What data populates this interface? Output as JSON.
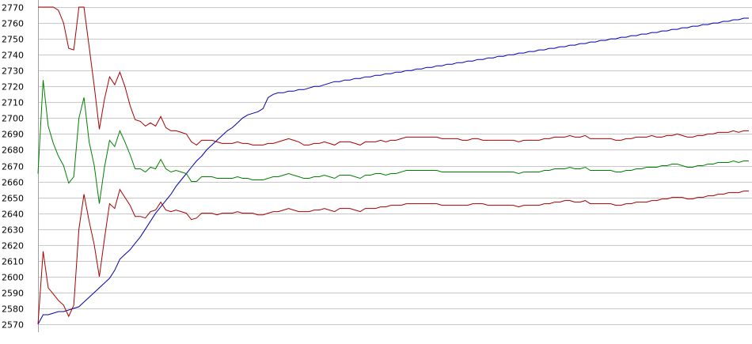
{
  "chart_data": {
    "type": "line",
    "title": "",
    "xlabel": "",
    "ylabel": "",
    "ylim": [
      2570,
      2770
    ],
    "yticks": [
      2570,
      2580,
      2590,
      2600,
      2610,
      2620,
      2630,
      2640,
      2650,
      2660,
      2670,
      2680,
      2690,
      2700,
      2710,
      2720,
      2730,
      2740,
      2750,
      2760,
      2770
    ],
    "grid": true,
    "legend": "none",
    "x": [
      0,
      1,
      2,
      3,
      4,
      5,
      6,
      7,
      8,
      9,
      10,
      11,
      12,
      13,
      14,
      15,
      16,
      17,
      18,
      19,
      20,
      21,
      22,
      23,
      24,
      25,
      26,
      27,
      28,
      29,
      30,
      31,
      32,
      33,
      34,
      35,
      36,
      37,
      38,
      39,
      40,
      41,
      42,
      43,
      44,
      45,
      46,
      47,
      48,
      49,
      50,
      51,
      52,
      53,
      54,
      55,
      56,
      57,
      58,
      59,
      60,
      61,
      62,
      63,
      64,
      65,
      66,
      67,
      68,
      69,
      70,
      71,
      72,
      73,
      74,
      75,
      76,
      77,
      78,
      79,
      80,
      81,
      82,
      83,
      84,
      85,
      86,
      87,
      88,
      89,
      90,
      91,
      92,
      93,
      94,
      95,
      96,
      97,
      98,
      99,
      100,
      101,
      102,
      103,
      104,
      105,
      106,
      107,
      108,
      109,
      110,
      111,
      112,
      113,
      114,
      115,
      116,
      117,
      118,
      119,
      120,
      121,
      122,
      123,
      124,
      125,
      126,
      127,
      128,
      129,
      130,
      131,
      132,
      133,
      134,
      135,
      136,
      137,
      138,
      139
    ],
    "series": [
      {
        "color": "#0000aa",
        "values": [
          2570,
          2576,
          2576,
          2577,
          2578,
          2578,
          2579,
          2580,
          2581,
          2584,
          2587,
          2590,
          2593,
          2596,
          2599,
          2604,
          2611,
          2614,
          2617,
          2621,
          2625,
          2630,
          2635,
          2640,
          2644,
          2648,
          2652,
          2657,
          2661,
          2665,
          2669,
          2673,
          2676,
          2680,
          2683,
          2686,
          2689,
          2692,
          2694,
          2697,
          2700,
          2702,
          2703,
          2704,
          2706,
          2713,
          2715,
          2716,
          2716,
          2717,
          2717,
          2718,
          2718,
          2719,
          2720,
          2720,
          2721,
          2722,
          2723,
          2723,
          2724,
          2724,
          2725,
          2725,
          2726,
          2726,
          2727,
          2727,
          2728,
          2728,
          2729,
          2729,
          2730,
          2730,
          2731,
          2731,
          2732,
          2732,
          2733,
          2733,
          2734,
          2734,
          2735,
          2735,
          2736,
          2736,
          2737,
          2737,
          2738,
          2738,
          2739,
          2739,
          2740,
          2740,
          2741,
          2741,
          2742,
          2742,
          2743,
          2743,
          2744,
          2744,
          2745,
          2745,
          2746,
          2746,
          2747,
          2747,
          2748,
          2748,
          2749,
          2749,
          2750,
          2750,
          2751,
          2751,
          2752,
          2752,
          2753,
          2753,
          2754,
          2754,
          2755,
          2755,
          2756,
          2756,
          2757,
          2757,
          2758,
          2758,
          2759,
          2759,
          2760,
          2760,
          2761,
          2761,
          2762,
          2762,
          2763,
          2763
        ]
      },
      {
        "color": "#aa0000",
        "values": [
          2770,
          2770,
          2770,
          2770,
          2768,
          2760,
          2744,
          2743,
          2770,
          2770,
          2745,
          2720,
          2693,
          2712,
          2726,
          2721,
          2729,
          2720,
          2708,
          2699,
          2698,
          2695,
          2697,
          2695,
          2701,
          2694,
          2692,
          2692,
          2691,
          2690,
          2685,
          2683,
          2686,
          2686,
          2686,
          2685,
          2684,
          2684,
          2684,
          2685,
          2684,
          2684,
          2683,
          2683,
          2683,
          2684,
          2684,
          2685,
          2686,
          2687,
          2686,
          2685,
          2683,
          2683,
          2684,
          2684,
          2685,
          2684,
          2683,
          2685,
          2685,
          2685,
          2684,
          2683,
          2685,
          2685,
          2685,
          2686,
          2685,
          2686,
          2686,
          2687,
          2688,
          2688,
          2688,
          2688,
          2688,
          2688,
          2688,
          2687,
          2687,
          2687,
          2687,
          2686,
          2686,
          2687,
          2687,
          2686,
          2686,
          2686,
          2686,
          2686,
          2686,
          2686,
          2685,
          2686,
          2686,
          2686,
          2686,
          2687,
          2687,
          2688,
          2688,
          2688,
          2689,
          2688,
          2688,
          2689,
          2687,
          2687,
          2687,
          2687,
          2687,
          2686,
          2686,
          2687,
          2687,
          2688,
          2688,
          2688,
          2689,
          2688,
          2688,
          2689,
          2689,
          2690,
          2689,
          2688,
          2688,
          2689,
          2689,
          2690,
          2690,
          2691,
          2691,
          2691,
          2692,
          2691,
          2692,
          2692
        ]
      },
      {
        "color": "#008000",
        "values": [
          2665,
          2724,
          2695,
          2684,
          2676,
          2670,
          2659,
          2663,
          2700,
          2713,
          2685,
          2670,
          2646,
          2669,
          2686,
          2682,
          2692,
          2685,
          2677,
          2668,
          2668,
          2666,
          2669,
          2668,
          2674,
          2668,
          2666,
          2667,
          2666,
          2665,
          2660,
          2660,
          2663,
          2663,
          2663,
          2662,
          2662,
          2662,
          2662,
          2663,
          2662,
          2662,
          2661,
          2661,
          2661,
          2662,
          2663,
          2663,
          2664,
          2665,
          2664,
          2663,
          2662,
          2662,
          2663,
          2663,
          2664,
          2663,
          2662,
          2664,
          2664,
          2664,
          2663,
          2662,
          2664,
          2664,
          2665,
          2665,
          2664,
          2665,
          2665,
          2666,
          2667,
          2667,
          2667,
          2667,
          2667,
          2667,
          2667,
          2666,
          2666,
          2666,
          2666,
          2666,
          2666,
          2666,
          2666,
          2666,
          2666,
          2666,
          2666,
          2666,
          2666,
          2666,
          2665,
          2666,
          2666,
          2666,
          2666,
          2667,
          2667,
          2668,
          2668,
          2668,
          2669,
          2668,
          2668,
          2669,
          2667,
          2667,
          2667,
          2667,
          2667,
          2666,
          2666,
          2667,
          2667,
          2668,
          2668,
          2669,
          2669,
          2669,
          2670,
          2670,
          2671,
          2671,
          2670,
          2669,
          2669,
          2670,
          2670,
          2671,
          2671,
          2672,
          2672,
          2672,
          2673,
          2672,
          2673,
          2673
        ]
      },
      {
        "color": "#aa0000",
        "values": [
          2570,
          2616,
          2593,
          2589,
          2585,
          2582,
          2575,
          2582,
          2630,
          2652,
          2635,
          2620,
          2600,
          2624,
          2646,
          2643,
          2655,
          2650,
          2645,
          2638,
          2638,
          2637,
          2641,
          2642,
          2647,
          2642,
          2641,
          2642,
          2641,
          2640,
          2636,
          2637,
          2640,
          2640,
          2640,
          2639,
          2640,
          2640,
          2640,
          2641,
          2640,
          2640,
          2640,
          2639,
          2639,
          2640,
          2641,
          2641,
          2642,
          2643,
          2642,
          2641,
          2641,
          2641,
          2642,
          2642,
          2643,
          2642,
          2641,
          2643,
          2643,
          2643,
          2642,
          2641,
          2643,
          2643,
          2643,
          2644,
          2644,
          2645,
          2645,
          2645,
          2646,
          2646,
          2646,
          2646,
          2646,
          2646,
          2646,
          2645,
          2645,
          2645,
          2645,
          2645,
          2645,
          2646,
          2646,
          2646,
          2645,
          2645,
          2645,
          2645,
          2645,
          2645,
          2644,
          2645,
          2645,
          2645,
          2645,
          2646,
          2646,
          2647,
          2647,
          2648,
          2648,
          2647,
          2647,
          2648,
          2646,
          2646,
          2646,
          2646,
          2646,
          2645,
          2645,
          2646,
          2646,
          2647,
          2647,
          2647,
          2648,
          2648,
          2649,
          2649,
          2650,
          2650,
          2650,
          2649,
          2649,
          2650,
          2650,
          2651,
          2651,
          2652,
          2652,
          2653,
          2653,
          2653,
          2654,
          2654
        ]
      }
    ]
  }
}
